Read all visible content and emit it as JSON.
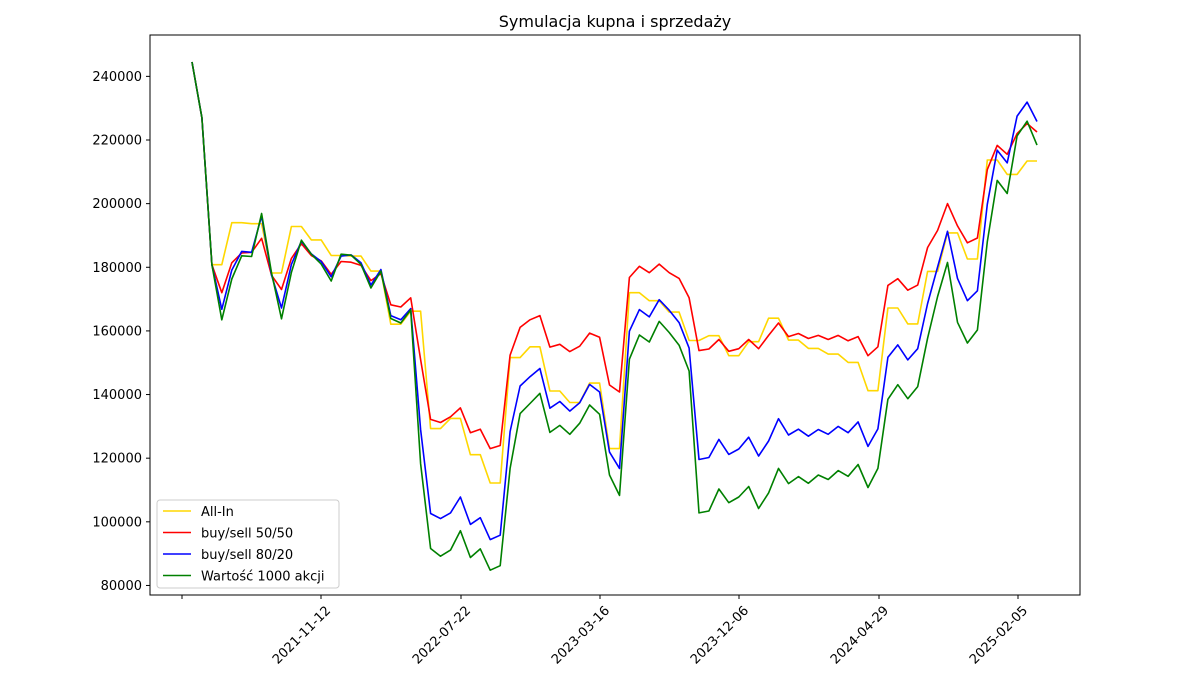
{
  "chart_data": {
    "type": "line",
    "title": "Symulacja kupna i sprzedaży",
    "xlabel": "",
    "ylabel": "",
    "ylim": [
      77000,
      253000
    ],
    "yticks": [
      80000,
      100000,
      120000,
      140000,
      160000,
      180000,
      200000,
      220000,
      240000
    ],
    "ytick_labels": [
      "80000",
      "100000",
      "120000",
      "140000",
      "160000",
      "180000",
      "200000",
      "220000",
      "240000"
    ],
    "xtick_labels": [
      "2021-11-12",
      "2022-07-22",
      "2023-03-16",
      "2023-12-06",
      "2024-04-29",
      "2025-02-05"
    ],
    "legend_position": "lower-left",
    "grid": false,
    "series": [
      {
        "name": "All-In",
        "color": "#ffd700",
        "values": [
          244500,
          227000,
          180800,
          180800,
          194000,
          194000,
          193700,
          193700,
          178200,
          178200,
          192800,
          192800,
          188600,
          188600,
          183700,
          183700,
          183500,
          183500,
          178800,
          178800,
          162100,
          162100,
          166200,
          166200,
          129300,
          129300,
          132500,
          132500,
          121100,
          121100,
          112200,
          112200,
          151600,
          151600,
          155000,
          155000,
          141100,
          141100,
          137500,
          137500,
          143600,
          143600,
          123000,
          123000,
          172000,
          172000,
          169500,
          169500,
          165900,
          165900,
          157000,
          157000,
          158500,
          158500,
          152200,
          152200,
          156600,
          156600,
          164000,
          164000,
          157100,
          157100,
          154500,
          154500,
          152700,
          152700,
          150100,
          150100,
          141200,
          141200,
          167200,
          167200,
          162200,
          162200,
          178700,
          178700,
          190800,
          190800,
          182600,
          182600,
          213700,
          213700,
          209200,
          209200,
          213400,
          213400
        ]
      },
      {
        "name": "buy/sell 50/50",
        "color": "#ff0000",
        "values": [
          244500,
          227000,
          180800,
          172000,
          181400,
          184500,
          184700,
          189100,
          177500,
          173000,
          182800,
          187400,
          183700,
          182000,
          177800,
          181800,
          181600,
          180600,
          175800,
          178000,
          168200,
          167500,
          170400,
          151000,
          132200,
          131200,
          133000,
          135800,
          128000,
          129100,
          123000,
          124000,
          152400,
          161100,
          163500,
          164800,
          154900,
          155800,
          153500,
          155200,
          159300,
          158000,
          143000,
          140800,
          176800,
          180300,
          178300,
          181000,
          178300,
          176500,
          170400,
          153800,
          154300,
          157300,
          153600,
          154400,
          157300,
          154400,
          158600,
          162500,
          158200,
          159200,
          157600,
          158600,
          157300,
          158600,
          156900,
          158200,
          152200,
          155000,
          174300,
          176400,
          172800,
          174400,
          186200,
          191600,
          200000,
          193000,
          187700,
          189200,
          210700,
          218300,
          215500,
          222000,
          225200,
          222500
        ]
      },
      {
        "name": "buy/sell 80/20",
        "color": "#0000ff",
        "values": [
          244500,
          227000,
          180800,
          166800,
          179100,
          185000,
          184700,
          196100,
          177600,
          167200,
          180900,
          188200,
          184200,
          181800,
          177000,
          183500,
          183900,
          181400,
          174400,
          179300,
          164800,
          163500,
          167000,
          129000,
          102600,
          101000,
          102800,
          107800,
          99200,
          101300,
          94400,
          95800,
          128400,
          142700,
          145600,
          148200,
          135700,
          137800,
          134800,
          137400,
          143200,
          140800,
          121900,
          116800,
          159900,
          166700,
          164400,
          169800,
          166500,
          162600,
          154600,
          119600,
          120200,
          125900,
          121200,
          122900,
          126600,
          120700,
          125400,
          132400,
          127300,
          129100,
          126900,
          129000,
          127500,
          130000,
          128000,
          131400,
          123700,
          129200,
          151700,
          155600,
          150900,
          154400,
          168600,
          180100,
          191300,
          176500,
          169500,
          172600,
          199800,
          216800,
          212800,
          227500,
          231900,
          225800
        ]
      },
      {
        "name": "Wartość 1000 akcji",
        "color": "#008000",
        "values": [
          244500,
          227000,
          180800,
          163500,
          176300,
          183600,
          183400,
          196900,
          178300,
          163800,
          178400,
          188500,
          184100,
          181000,
          175700,
          184100,
          183800,
          180900,
          173500,
          178800,
          163900,
          162500,
          166600,
          118300,
          91600,
          89200,
          91100,
          97200,
          88800,
          91500,
          84800,
          86200,
          116800,
          134000,
          137200,
          140400,
          128100,
          130300,
          127500,
          131000,
          136700,
          133800,
          114700,
          108300,
          151100,
          158700,
          156500,
          163000,
          159500,
          155500,
          147400,
          102800,
          103400,
          110300,
          106000,
          107800,
          111100,
          104200,
          109100,
          116800,
          112000,
          114200,
          112100,
          114700,
          113300,
          116100,
          114300,
          118000,
          110800,
          116800,
          138500,
          143100,
          138700,
          142500,
          157700,
          170800,
          181500,
          162700,
          156200,
          160300,
          188000,
          207300,
          203200,
          221300,
          225900,
          218400
        ]
      }
    ]
  }
}
